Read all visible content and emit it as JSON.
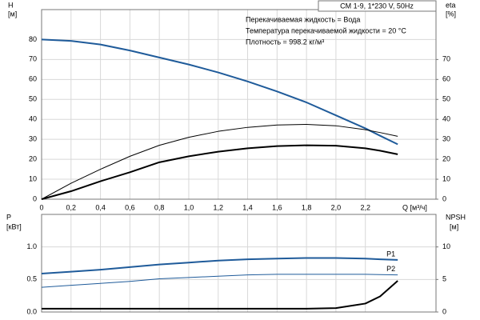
{
  "chart_data": [
    {
      "type": "line",
      "title": "CM 1-9, 1*230 V, 50Hz",
      "annotations": [
        "Перекачиваемая жидкость = Вода",
        "Температура перекачиваемой жидкости = 20 °C",
        "Плотность = 998.2 кг/м³"
      ],
      "ylabel": "H",
      "yunit": "[м]",
      "y2label": "eta",
      "y2unit": "[%]",
      "xlabel": "Q [м³/ч]",
      "x": [
        0,
        0.2,
        0.4,
        0.6,
        0.8,
        1.0,
        1.2,
        1.4,
        1.6,
        1.8,
        2.0,
        2.2,
        2.3,
        2.42
      ],
      "series": [
        {
          "color": "#1f5b9a",
          "width": 2,
          "values": [
            80,
            79.3,
            77.5,
            74.5,
            71,
            67.5,
            63.5,
            59,
            54,
            48.5,
            42,
            35.5,
            31.8,
            27.5
          ]
        },
        {
          "color": "#000000",
          "width": 1,
          "axis": "y2",
          "values": [
            0,
            8,
            15,
            21.5,
            27,
            31,
            34,
            36,
            37.2,
            37.5,
            36.8,
            34.8,
            33.4,
            31.5
          ]
        },
        {
          "color": "#000000",
          "width": 2,
          "axis": "y2",
          "values": [
            0,
            4,
            9,
            13.5,
            18.5,
            21.5,
            23.8,
            25.5,
            26.6,
            27,
            26.8,
            25.5,
            24.3,
            22.5
          ]
        }
      ],
      "xlim": [
        0,
        2.68
      ],
      "xticks": [
        0,
        {
          "value": 0.2,
          "label": "0,2"
        },
        {
          "value": 0.4,
          "label": "0,4"
        },
        {
          "value": 0.6,
          "label": "0,6"
        },
        {
          "value": 0.8,
          "label": "0,8"
        },
        {
          "value": 1.0,
          "label": "1,0"
        },
        {
          "value": 1.2,
          "label": "1,2"
        },
        {
          "value": 1.4,
          "label": "1,4"
        },
        {
          "value": 1.6,
          "label": "1,6"
        },
        {
          "value": 1.8,
          "label": "1,8"
        },
        {
          "value": 2.0,
          "label": "2,0"
        },
        {
          "value": 2.2,
          "label": "2,2"
        }
      ],
      "show_xtick_labels": true,
      "ylim": [
        0,
        95
      ],
      "yticks": [
        0,
        10,
        20,
        30,
        40,
        50,
        60,
        70,
        80
      ],
      "y2lim": [
        0,
        95
      ],
      "y2ticks": [
        0,
        10,
        20,
        30,
        40,
        50,
        60,
        70
      ],
      "grid": true
    },
    {
      "type": "line",
      "ylabel": "P",
      "yunit": "[кВт]",
      "y2label": "NPSH",
      "y2unit": "[м]",
      "x": [
        0,
        0.2,
        0.4,
        0.6,
        0.8,
        1.0,
        1.2,
        1.4,
        1.6,
        1.8,
        2.0,
        2.2,
        2.3,
        2.42
      ],
      "series": [
        {
          "name": "P1",
          "color": "#1f5b9a",
          "width": 2,
          "values": [
            0.59,
            0.62,
            0.65,
            0.69,
            0.73,
            0.76,
            0.79,
            0.81,
            0.82,
            0.83,
            0.83,
            0.82,
            0.81,
            0.8
          ]
        },
        {
          "name": "P2",
          "color": "#1f5b9a",
          "width": 1,
          "values": [
            0.38,
            0.41,
            0.44,
            0.47,
            0.51,
            0.53,
            0.55,
            0.57,
            0.58,
            0.58,
            0.58,
            0.58,
            0.575,
            0.57
          ]
        },
        {
          "color": "#000000",
          "width": 2,
          "axis": "y2",
          "values": [
            0.5,
            0.5,
            0.5,
            0.5,
            0.5,
            0.5,
            0.5,
            0.5,
            0.5,
            0.5,
            0.6,
            1.3,
            2.4,
            4.8
          ]
        }
      ],
      "xlim": [
        0,
        2.68
      ],
      "xticks": [
        0,
        0.2,
        0.4,
        0.6,
        0.8,
        1.0,
        1.2,
        1.4,
        1.6,
        1.8,
        2.0,
        2.2
      ],
      "show_xtick_labels": false,
      "ylim": [
        0,
        1.5
      ],
      "yticks": [
        {
          "value": 0,
          "label": "0.0"
        },
        0.5,
        {
          "value": 1,
          "label": "1.0"
        }
      ],
      "y2lim": [
        0,
        15
      ],
      "y2ticks": [
        0,
        5,
        10
      ],
      "grid": true
    }
  ]
}
